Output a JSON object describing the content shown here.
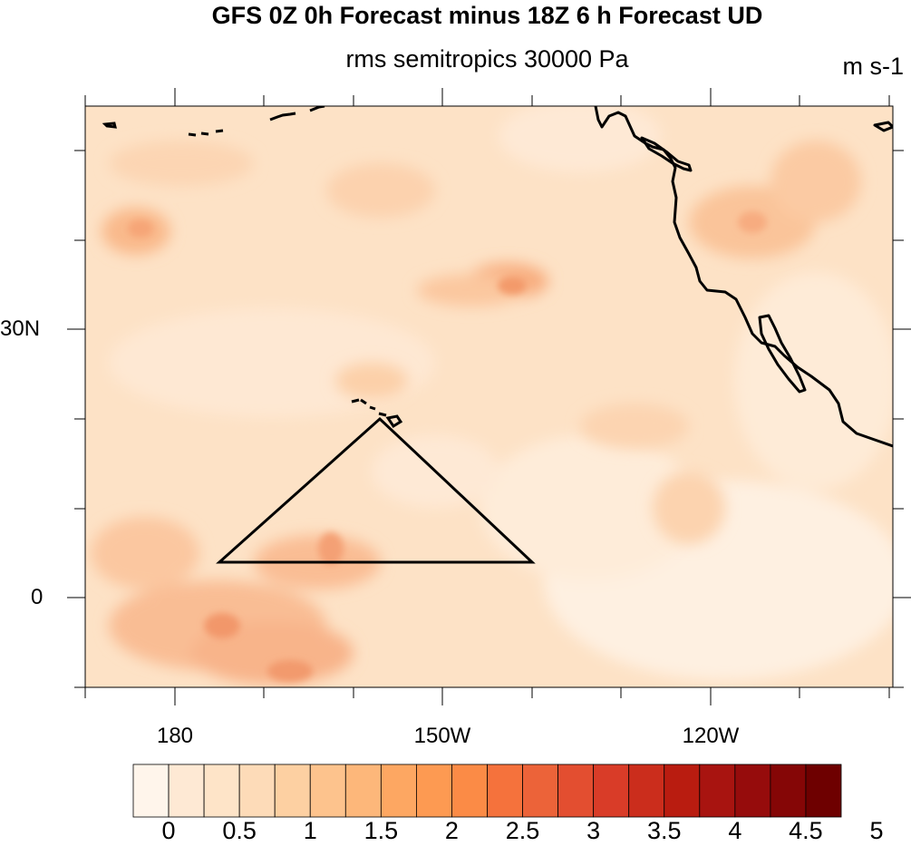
{
  "title": "GFS 0Z 0h Forecast minus 18Z 6 h Forecast UD",
  "subtitle": "rms semitropics 30000 Pa",
  "units": "m s-1",
  "lat_labels": [
    "30N",
    "0"
  ],
  "lon_labels": [
    "180",
    "150W",
    "120W"
  ],
  "colorbar": {
    "labels": [
      "0",
      "0.5",
      "1",
      "1.5",
      "2",
      "2.5",
      "3",
      "3.5",
      "4",
      "4.5",
      "5"
    ],
    "colors": [
      "#fff5eb",
      "#fee9d4",
      "#fee4c8",
      "#fddbb8",
      "#fdd0a2",
      "#fdc38d",
      "#fdb77a",
      "#fda762",
      "#fd9a52",
      "#fb8b46",
      "#f5723c",
      "#ec6339",
      "#e34e30",
      "#d93c28",
      "#cb2d1c",
      "#b91c10",
      "#a81410",
      "#960c0c",
      "#850606",
      "#6e0000"
    ]
  },
  "map": {
    "background_color": "#fde2c6",
    "outline_color": "#000000"
  }
}
